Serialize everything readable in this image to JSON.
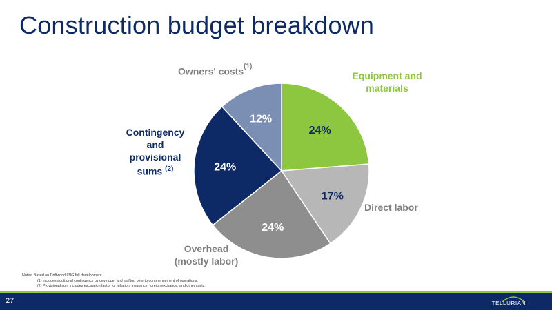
{
  "title": "Construction budget breakdown",
  "chart_data": {
    "type": "pie",
    "slices": [
      {
        "label": "Equipment and materials",
        "value": 24,
        "value_label": "24%",
        "color": "#8dc63f"
      },
      {
        "label": "Direct labor",
        "value": 17,
        "value_label": "17%",
        "color": "#b7b7b7"
      },
      {
        "label": "Overhead (mostly labor)",
        "value": 24,
        "value_label": "24%",
        "color": "#8e8e8e"
      },
      {
        "label": "Contingency and provisional sums",
        "value": 24,
        "value_label": "24%",
        "color": "#0d2a66"
      },
      {
        "label": "Owners' costs",
        "value": 12,
        "value_label": "12%",
        "color": "#7b8fb4"
      }
    ]
  },
  "labels": {
    "equipment": "Equipment and materials",
    "direct_labor": "Direct labor",
    "overhead_line1": "Overhead",
    "overhead_line2": "(mostly labor)",
    "contingency_line1": "Contingency",
    "contingency_line2": "and",
    "contingency_line3": "provisional",
    "contingency_line4": "sums",
    "contingency_note": "(2)",
    "owners": "Owners' costs",
    "owners_note": "(1)"
  },
  "notes": {
    "line1": "Notes:   Based on Driftwood LNG full development.",
    "line2": "(1) Includes additional contingency by developer and staffing prior to commencement of operations.",
    "line3": "(2) Provisional sum includes escalation factor for inflation, insurance, foreign exchange, and other costs."
  },
  "footer": {
    "page_number": "27",
    "logo_text": "TELLURIAN"
  },
  "colors": {
    "navy": "#0d2a66",
    "green": "#8dc63f",
    "gray_label": "#7f7f7f"
  }
}
